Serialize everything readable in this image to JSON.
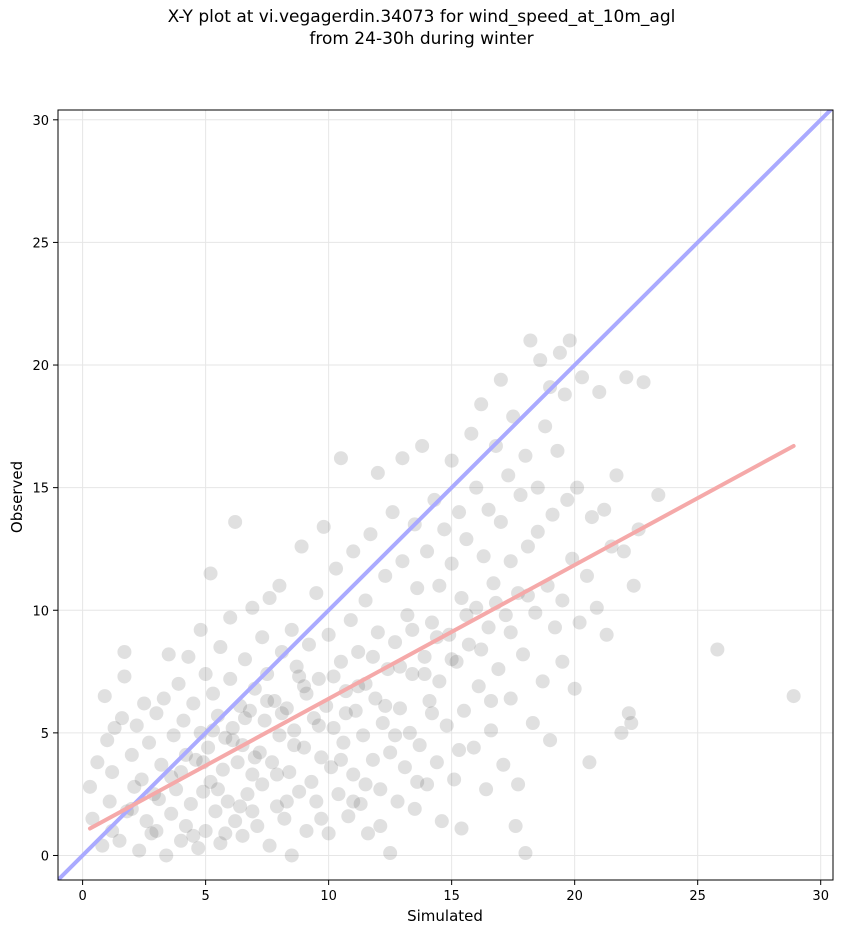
{
  "chart_data": {
    "type": "scatter",
    "title_lines": [
      "X-Y plot at vi.vegagerdin.34073 for wind_speed_at_10m_agl",
      "from 24-30h during winter"
    ],
    "xlabel": "Simulated",
    "ylabel": "Observed",
    "xlim": [
      -1.0,
      30.5
    ],
    "ylim": [
      -1.0,
      30.4
    ],
    "xticks": [
      0,
      5,
      10,
      15,
      20,
      25,
      30
    ],
    "yticks": [
      0,
      5,
      10,
      15,
      20,
      25,
      30
    ],
    "grid": true,
    "lines": [
      {
        "name": "",
        "color": "#aaaaff",
        "points": [
          [
            -1.0,
            -1.0
          ],
          [
            30.5,
            30.5
          ]
        ]
      },
      {
        "name": "",
        "color": "#f5a9a9",
        "points": [
          [
            0.3,
            1.1
          ],
          [
            28.9,
            16.7
          ]
        ]
      }
    ],
    "point_color": "#555555",
    "point_opacity": 0.18,
    "series": [
      {
        "name": "",
        "points": [
          [
            0.3,
            2.8
          ],
          [
            0.4,
            1.5
          ],
          [
            0.6,
            3.8
          ],
          [
            0.8,
            0.4
          ],
          [
            0.9,
            6.5
          ],
          [
            1.0,
            4.7
          ],
          [
            1.1,
            2.2
          ],
          [
            1.2,
            3.4
          ],
          [
            1.3,
            5.2
          ],
          [
            1.5,
            0.6
          ],
          [
            1.6,
            5.6
          ],
          [
            1.7,
            8.3
          ],
          [
            1.7,
            7.3
          ],
          [
            1.8,
            1.8
          ],
          [
            2.0,
            4.1
          ],
          [
            2.1,
            2.8
          ],
          [
            2.2,
            5.3
          ],
          [
            2.3,
            0.2
          ],
          [
            2.4,
            3.1
          ],
          [
            2.5,
            6.2
          ],
          [
            2.6,
            1.4
          ],
          [
            2.7,
            4.6
          ],
          [
            2.8,
            0.9
          ],
          [
            3.0,
            5.8
          ],
          [
            3.1,
            2.3
          ],
          [
            3.2,
            3.7
          ],
          [
            3.3,
            6.4
          ],
          [
            3.4,
            0.0
          ],
          [
            3.5,
            8.2
          ],
          [
            3.6,
            1.7
          ],
          [
            3.7,
            4.9
          ],
          [
            3.8,
            2.7
          ],
          [
            3.9,
            7.0
          ],
          [
            4.0,
            0.6
          ],
          [
            4.0,
            3.4
          ],
          [
            4.1,
            5.5
          ],
          [
            4.2,
            1.2
          ],
          [
            4.3,
            8.1
          ],
          [
            4.4,
            2.1
          ],
          [
            4.5,
            6.2
          ],
          [
            4.6,
            3.9
          ],
          [
            4.7,
            0.3
          ],
          [
            4.8,
            9.2
          ],
          [
            4.8,
            5.0
          ],
          [
            4.9,
            2.6
          ],
          [
            5.0,
            7.4
          ],
          [
            5.0,
            1.0
          ],
          [
            5.1,
            4.4
          ],
          [
            5.2,
            11.5
          ],
          [
            5.2,
            3.0
          ],
          [
            5.3,
            6.6
          ],
          [
            5.4,
            1.8
          ],
          [
            5.5,
            5.7
          ],
          [
            5.6,
            0.5
          ],
          [
            5.6,
            8.5
          ],
          [
            5.7,
            3.5
          ],
          [
            5.8,
            4.8
          ],
          [
            5.9,
            2.2
          ],
          [
            6.0,
            7.2
          ],
          [
            6.0,
            9.7
          ],
          [
            6.1,
            5.2
          ],
          [
            6.2,
            1.4
          ],
          [
            6.2,
            13.6
          ],
          [
            6.3,
            3.8
          ],
          [
            6.4,
            6.1
          ],
          [
            6.5,
            0.8
          ],
          [
            6.5,
            4.5
          ],
          [
            6.6,
            8.0
          ],
          [
            6.7,
            2.5
          ],
          [
            6.8,
            5.9
          ],
          [
            6.9,
            10.1
          ],
          [
            6.9,
            3.3
          ],
          [
            7.0,
            6.8
          ],
          [
            7.1,
            1.2
          ],
          [
            7.2,
            4.2
          ],
          [
            7.3,
            8.9
          ],
          [
            7.3,
            2.9
          ],
          [
            7.4,
            5.5
          ],
          [
            7.5,
            7.4
          ],
          [
            7.6,
            0.4
          ],
          [
            7.6,
            10.5
          ],
          [
            7.7,
            3.8
          ],
          [
            7.8,
            6.3
          ],
          [
            7.9,
            2.0
          ],
          [
            8.0,
            4.9
          ],
          [
            8.0,
            11.0
          ],
          [
            8.1,
            8.3
          ],
          [
            8.2,
            1.5
          ],
          [
            8.3,
            6.0
          ],
          [
            8.4,
            3.4
          ],
          [
            8.5,
            9.2
          ],
          [
            8.5,
            0.0
          ],
          [
            8.6,
            5.1
          ],
          [
            8.7,
            7.7
          ],
          [
            8.8,
            2.6
          ],
          [
            8.9,
            12.6
          ],
          [
            9.0,
            4.4
          ],
          [
            9.0,
            6.9
          ],
          [
            9.1,
            1.0
          ],
          [
            9.2,
            8.6
          ],
          [
            9.3,
            3.0
          ],
          [
            9.4,
            5.6
          ],
          [
            9.5,
            10.7
          ],
          [
            9.5,
            2.2
          ],
          [
            9.6,
            7.2
          ],
          [
            9.7,
            4.0
          ],
          [
            9.8,
            13.4
          ],
          [
            9.9,
            6.1
          ],
          [
            10.0,
            0.9
          ],
          [
            10.0,
            9.0
          ],
          [
            10.1,
            3.6
          ],
          [
            10.2,
            5.2
          ],
          [
            10.3,
            11.7
          ],
          [
            10.4,
            2.5
          ],
          [
            10.5,
            7.9
          ],
          [
            10.5,
            16.2
          ],
          [
            10.6,
            4.6
          ],
          [
            10.7,
            6.7
          ],
          [
            10.8,
            1.6
          ],
          [
            10.9,
            9.6
          ],
          [
            11.0,
            3.3
          ],
          [
            11.0,
            12.4
          ],
          [
            11.1,
            5.9
          ],
          [
            11.2,
            8.3
          ],
          [
            11.3,
            2.1
          ],
          [
            11.4,
            4.9
          ],
          [
            11.5,
            10.4
          ],
          [
            11.5,
            7.0
          ],
          [
            11.6,
            0.9
          ],
          [
            11.7,
            13.1
          ],
          [
            11.8,
            3.9
          ],
          [
            11.9,
            6.4
          ],
          [
            12.0,
            15.6
          ],
          [
            12.0,
            9.1
          ],
          [
            12.1,
            2.7
          ],
          [
            12.2,
            5.4
          ],
          [
            12.3,
            11.4
          ],
          [
            12.4,
            7.6
          ],
          [
            12.5,
            0.1
          ],
          [
            12.5,
            4.2
          ],
          [
            12.6,
            14.0
          ],
          [
            12.7,
            8.7
          ],
          [
            12.8,
            2.2
          ],
          [
            12.9,
            6.0
          ],
          [
            13.0,
            12.0
          ],
          [
            13.0,
            16.2
          ],
          [
            13.1,
            3.6
          ],
          [
            13.2,
            9.8
          ],
          [
            13.3,
            5.0
          ],
          [
            13.4,
            7.4
          ],
          [
            13.5,
            13.5
          ],
          [
            13.5,
            1.9
          ],
          [
            13.6,
            10.9
          ],
          [
            13.7,
            4.5
          ],
          [
            13.8,
            16.7
          ],
          [
            13.9,
            8.1
          ],
          [
            14.0,
            2.9
          ],
          [
            14.0,
            12.4
          ],
          [
            14.1,
            6.3
          ],
          [
            14.2,
            9.5
          ],
          [
            14.3,
            14.5
          ],
          [
            14.4,
            3.8
          ],
          [
            14.5,
            11.0
          ],
          [
            14.5,
            7.1
          ],
          [
            14.6,
            1.4
          ],
          [
            14.7,
            13.3
          ],
          [
            14.8,
            5.3
          ],
          [
            14.9,
            9.0
          ],
          [
            15.0,
            16.1
          ],
          [
            15.0,
            11.9
          ],
          [
            15.1,
            3.1
          ],
          [
            15.2,
            7.9
          ],
          [
            15.3,
            14.0
          ],
          [
            15.4,
            10.5
          ],
          [
            15.4,
            1.1
          ],
          [
            15.5,
            5.9
          ],
          [
            15.6,
            12.9
          ],
          [
            15.7,
            8.6
          ],
          [
            15.8,
            17.2
          ],
          [
            15.9,
            4.4
          ],
          [
            16.0,
            10.1
          ],
          [
            16.0,
            15.0
          ],
          [
            16.1,
            6.9
          ],
          [
            16.2,
            18.4
          ],
          [
            16.3,
            12.2
          ],
          [
            16.4,
            2.7
          ],
          [
            16.5,
            9.3
          ],
          [
            16.5,
            14.1
          ],
          [
            16.6,
            5.1
          ],
          [
            16.7,
            11.1
          ],
          [
            16.8,
            16.7
          ],
          [
            16.9,
            7.6
          ],
          [
            17.0,
            19.4
          ],
          [
            17.0,
            13.6
          ],
          [
            17.1,
            3.7
          ],
          [
            17.2,
            9.8
          ],
          [
            17.3,
            15.5
          ],
          [
            17.4,
            12.0
          ],
          [
            17.4,
            6.4
          ],
          [
            17.5,
            17.9
          ],
          [
            17.6,
            1.2
          ],
          [
            17.7,
            10.7
          ],
          [
            17.8,
            14.7
          ],
          [
            17.9,
            8.2
          ],
          [
            18.0,
            16.3
          ],
          [
            18.0,
            0.1
          ],
          [
            18.1,
            12.6
          ],
          [
            18.2,
            21.0
          ],
          [
            18.3,
            5.4
          ],
          [
            18.4,
            9.9
          ],
          [
            18.5,
            15.0
          ],
          [
            18.5,
            13.2
          ],
          [
            18.6,
            20.2
          ],
          [
            18.7,
            7.1
          ],
          [
            18.8,
            17.5
          ],
          [
            18.9,
            11.0
          ],
          [
            19.0,
            19.1
          ],
          [
            19.0,
            4.7
          ],
          [
            19.1,
            13.9
          ],
          [
            19.2,
            9.3
          ],
          [
            19.3,
            16.5
          ],
          [
            19.4,
            20.5
          ],
          [
            19.5,
            10.4
          ],
          [
            19.5,
            7.9
          ],
          [
            19.6,
            18.8
          ],
          [
            19.7,
            14.5
          ],
          [
            19.8,
            21.0
          ],
          [
            19.9,
            12.1
          ],
          [
            20.0,
            6.8
          ],
          [
            20.1,
            15.0
          ],
          [
            20.2,
            9.5
          ],
          [
            20.3,
            19.5
          ],
          [
            20.5,
            11.4
          ],
          [
            20.6,
            3.8
          ],
          [
            20.7,
            13.8
          ],
          [
            20.9,
            10.1
          ],
          [
            21.0,
            18.9
          ],
          [
            21.2,
            14.1
          ],
          [
            21.3,
            9.0
          ],
          [
            21.5,
            12.6
          ],
          [
            21.7,
            15.5
          ],
          [
            21.9,
            5.0
          ],
          [
            22.0,
            12.4
          ],
          [
            22.1,
            19.5
          ],
          [
            22.2,
            5.8
          ],
          [
            22.3,
            5.4
          ],
          [
            22.4,
            11.0
          ],
          [
            22.6,
            13.3
          ],
          [
            22.8,
            19.3
          ],
          [
            23.4,
            14.7
          ],
          [
            25.8,
            8.4
          ],
          [
            28.9,
            6.5
          ],
          [
            1.2,
            1.0
          ],
          [
            2.0,
            1.9
          ],
          [
            2.9,
            2.5
          ],
          [
            3.6,
            3.2
          ],
          [
            4.2,
            4.1
          ],
          [
            4.9,
            3.8
          ],
          [
            5.5,
            2.7
          ],
          [
            6.1,
            4.7
          ],
          [
            6.6,
            5.6
          ],
          [
            7.0,
            4.0
          ],
          [
            7.5,
            6.3
          ],
          [
            8.1,
            5.8
          ],
          [
            8.6,
            4.5
          ],
          [
            9.1,
            6.6
          ],
          [
            9.6,
            5.3
          ],
          [
            10.2,
            7.3
          ],
          [
            10.7,
            5.8
          ],
          [
            11.2,
            6.9
          ],
          [
            11.8,
            8.1
          ],
          [
            12.3,
            6.1
          ],
          [
            12.9,
            7.7
          ],
          [
            13.4,
            9.2
          ],
          [
            13.9,
            7.4
          ],
          [
            14.4,
            8.9
          ],
          [
            15.0,
            8.0
          ],
          [
            15.6,
            9.8
          ],
          [
            16.2,
            8.4
          ],
          [
            16.8,
            10.3
          ],
          [
            17.4,
            9.1
          ],
          [
            18.1,
            10.6
          ],
          [
            5.3,
            5.1
          ],
          [
            6.4,
            2.0
          ],
          [
            7.9,
            3.3
          ],
          [
            8.8,
            7.3
          ],
          [
            10.5,
            3.9
          ],
          [
            11.5,
            2.9
          ],
          [
            12.7,
            4.9
          ],
          [
            14.2,
            5.8
          ],
          [
            15.3,
            4.3
          ],
          [
            16.6,
            6.3
          ],
          [
            3.0,
            1.0
          ],
          [
            4.5,
            0.8
          ],
          [
            5.8,
            0.9
          ],
          [
            6.9,
            1.8
          ],
          [
            8.3,
            2.2
          ],
          [
            9.7,
            1.5
          ],
          [
            11.0,
            2.2
          ],
          [
            12.1,
            1.2
          ],
          [
            13.6,
            3.0
          ],
          [
            17.7,
            2.9
          ]
        ]
      }
    ]
  }
}
